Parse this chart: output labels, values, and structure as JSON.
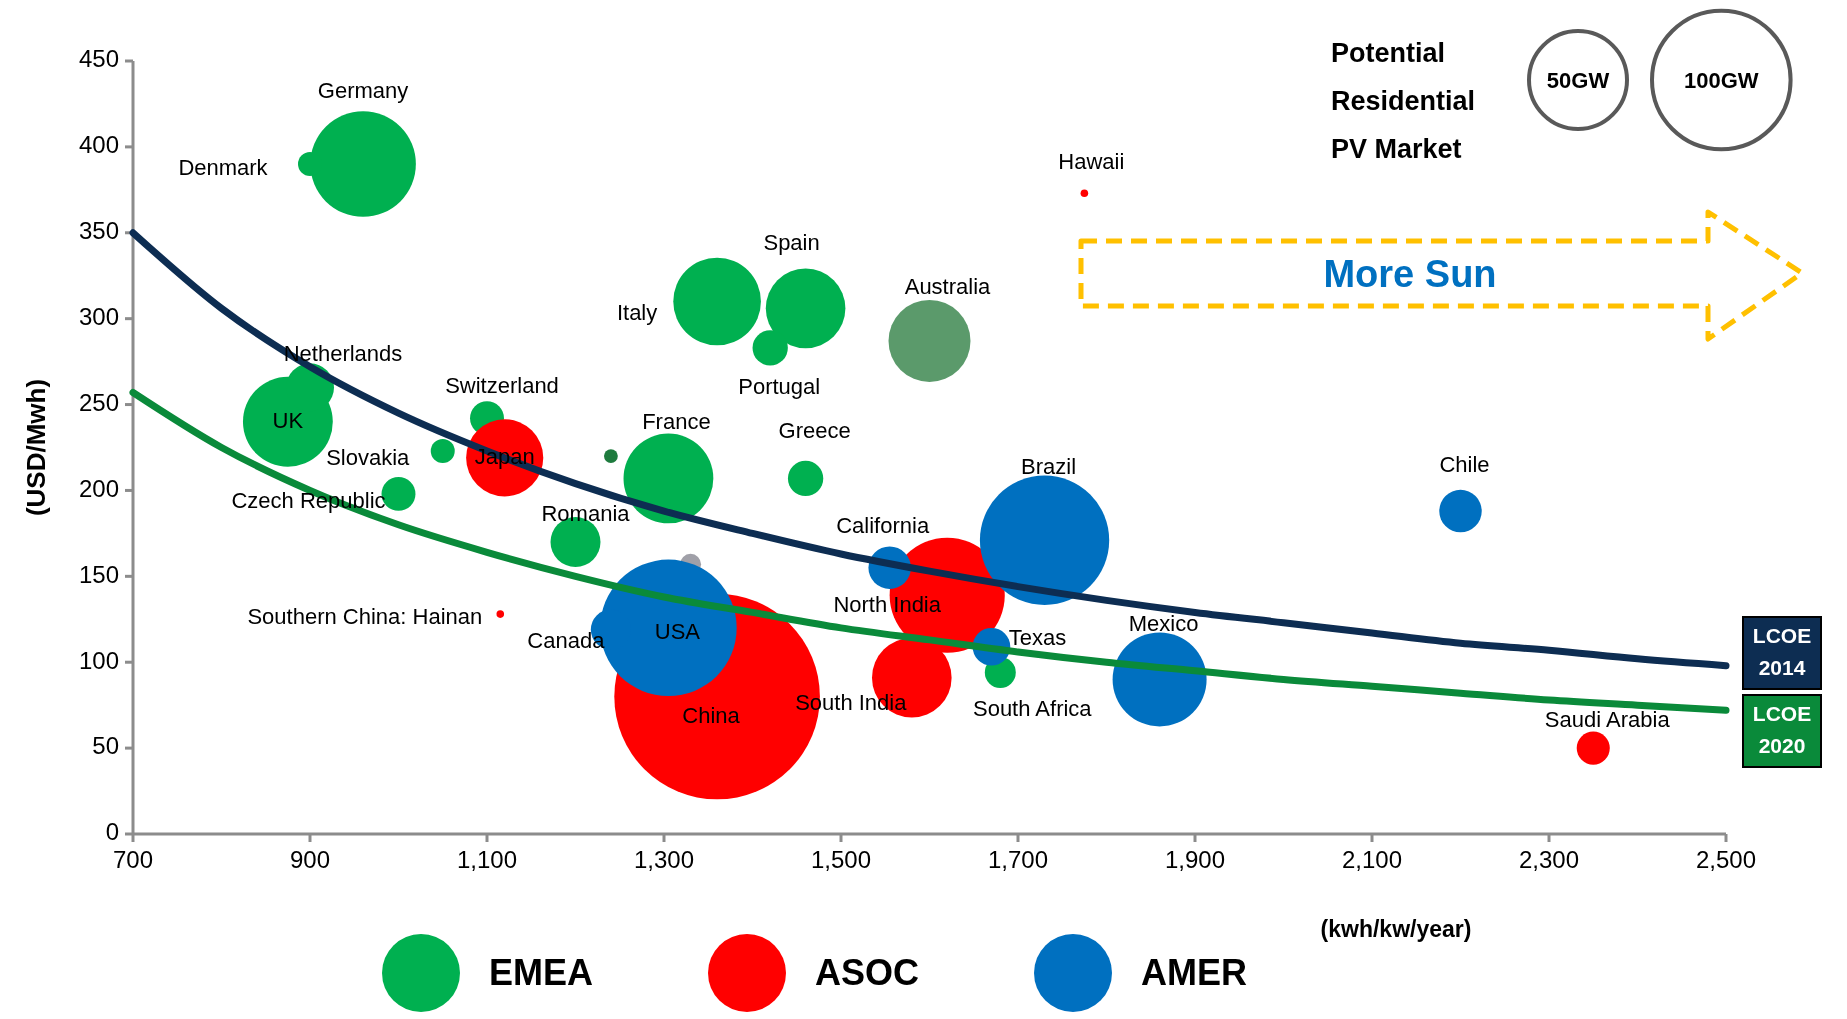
{
  "chart_data": {
    "type": "bubble",
    "xlabel": "(kwh/kw/year)",
    "ylabel": "(USD/Mwh)",
    "legend_title": "Potential Residential PV Market",
    "legend": "bottom",
    "xlim": [
      700,
      2500
    ],
    "xticks": [
      {
        "value": 700,
        "label": "700"
      },
      {
        "value": 900,
        "label": "900"
      },
      {
        "value": 1100,
        "label": "1,100"
      },
      {
        "value": 1300,
        "label": "1,300"
      },
      {
        "value": 1500,
        "label": "1,500"
      },
      {
        "value": 1700,
        "label": "1,700"
      },
      {
        "value": 1900,
        "label": "1,900"
      },
      {
        "value": 2100,
        "label": "2,100"
      },
      {
        "value": 2300,
        "label": "2,300"
      },
      {
        "value": 2500,
        "label": "2,500"
      }
    ],
    "ylim": [
      0,
      450
    ],
    "yticks": [
      0,
      50,
      100,
      150,
      200,
      250,
      300,
      350,
      400,
      450
    ],
    "size_legend": [
      {
        "value": 50,
        "label": "50GW"
      },
      {
        "value": 100,
        "label": "100GW"
      }
    ],
    "series": [
      {
        "name": "LCOE 2014",
        "type": "line",
        "color": "#0d2d52",
        "x": [
          700,
          800,
          900,
          1000,
          1100,
          1200,
          1300,
          1400,
          1500,
          1600,
          1700,
          1800,
          1900,
          2000,
          2100,
          2200,
          2300,
          2400,
          2500
        ],
        "values": [
          350,
          306,
          272,
          245,
          223,
          204,
          188,
          175,
          163,
          153,
          144,
          136,
          129,
          123,
          117,
          111,
          107,
          102,
          98
        ]
      },
      {
        "name": "LCOE 2020",
        "type": "line",
        "color": "#0a8a3a",
        "x": [
          700,
          800,
          900,
          1000,
          1100,
          1200,
          1300,
          1400,
          1500,
          1600,
          1700,
          1800,
          1900,
          2000,
          2100,
          2200,
          2300,
          2400,
          2500
        ],
        "values": [
          257,
          225,
          200,
          180,
          164,
          150,
          138,
          129,
          120,
          113,
          106,
          100,
          95,
          90,
          86,
          82,
          78,
          75,
          72
        ]
      },
      {
        "color": "#a0a0a8",
        "x": [
          1330
        ],
        "values": [
          157
        ],
        "sizes": [
          2.3
        ]
      },
      {
        "name": "EMEA",
        "color": "#00b050",
        "x": [
          960,
          900,
          875,
          900,
          1100,
          1050,
          1000,
          1305,
          1200,
          1360,
          1460,
          1420,
          1460,
          1600,
          1680,
          1240
        ],
        "values": [
          390,
          390,
          240,
          260,
          242,
          223,
          198,
          207,
          170,
          310,
          306,
          283,
          207,
          287,
          94,
          220
        ],
        "sizes": [
          58,
          3,
          42,
          12,
          6,
          3,
          6,
          42,
          13,
          40,
          33,
          6.5,
          6.5,
          35,
          5,
          1
        ],
        "colors": [
          "#00b050",
          "#00b050",
          "#00b050",
          "#00b050",
          "#00b050",
          "#00b050",
          "#00b050",
          "#00b050",
          "#00b050",
          "#00b050",
          "#00b050",
          "#00b050",
          "#00b050",
          "#5b9a6b",
          "#00b050",
          "#1e7b3e"
        ]
      },
      {
        "name": "ASOC",
        "color": "#ff0000",
        "x": [
          1360,
          1120,
          1620,
          1580,
          1775,
          1115,
          2350
        ],
        "values": [
          80,
          219,
          139,
          91,
          373,
          128,
          50
        ],
        "sizes": [
          220,
          31,
          69,
          33,
          0.3,
          0.3,
          5.7
        ]
      },
      {
        "name": "AMER",
        "color": "#0070c0",
        "x": [
          1305,
          1240,
          1555,
          1730,
          1670,
          1860,
          2200
        ],
        "values": [
          120,
          119,
          155,
          171,
          109,
          90,
          188
        ],
        "sizes": [
          97,
          8.4,
          9.4,
          87,
          7.4,
          46,
          9.4
        ]
      }
    ],
    "annotations": [
      {
        "text": "Germany",
        "x": 960,
        "y": 390
      },
      {
        "text": "Denmark",
        "x": 900,
        "y": 390
      },
      {
        "text": "UK",
        "x": 875,
        "y": 240
      },
      {
        "text": "Netherlands",
        "x": 900,
        "y": 260
      },
      {
        "text": "Switzerland",
        "x": 1100,
        "y": 242
      },
      {
        "text": "Slovakia",
        "x": 1050,
        "y": 223
      },
      {
        "text": "Czech Republic",
        "x": 1000,
        "y": 198
      },
      {
        "text": "France",
        "x": 1305,
        "y": 207
      },
      {
        "text": "Romania",
        "x": 1200,
        "y": 170
      },
      {
        "text": "Italy",
        "x": 1360,
        "y": 310
      },
      {
        "text": "Spain",
        "x": 1460,
        "y": 306
      },
      {
        "text": "Portugal",
        "x": 1420,
        "y": 283
      },
      {
        "text": "Greece",
        "x": 1460,
        "y": 207
      },
      {
        "text": "Australia",
        "x": 1600,
        "y": 287
      },
      {
        "text": "South Africa",
        "x": 1680,
        "y": 94
      },
      {
        "text": "China",
        "x": 1360,
        "y": 80
      },
      {
        "text": "Japan",
        "x": 1120,
        "y": 219
      },
      {
        "text": "North India",
        "x": 1620,
        "y": 139
      },
      {
        "text": "South India",
        "x": 1580,
        "y": 91
      },
      {
        "text": "Hawaii",
        "x": 1775,
        "y": 373
      },
      {
        "text": "Southern China: Hainan",
        "x": 1115,
        "y": 128
      },
      {
        "text": "Saudi Arabia",
        "x": 2350,
        "y": 50
      },
      {
        "text": "USA",
        "x": 1305,
        "y": 120
      },
      {
        "text": "Canada",
        "x": 1240,
        "y": 119
      },
      {
        "text": "California",
        "x": 1555,
        "y": 155
      },
      {
        "text": "Brazil",
        "x": 1730,
        "y": 171
      },
      {
        "text": "Texas",
        "x": 1670,
        "y": 109
      },
      {
        "text": "Mexico",
        "x": 1860,
        "y": 90
      },
      {
        "text": "Chile",
        "x": 2200,
        "y": 188
      },
      "More Sun"
    ]
  }
}
